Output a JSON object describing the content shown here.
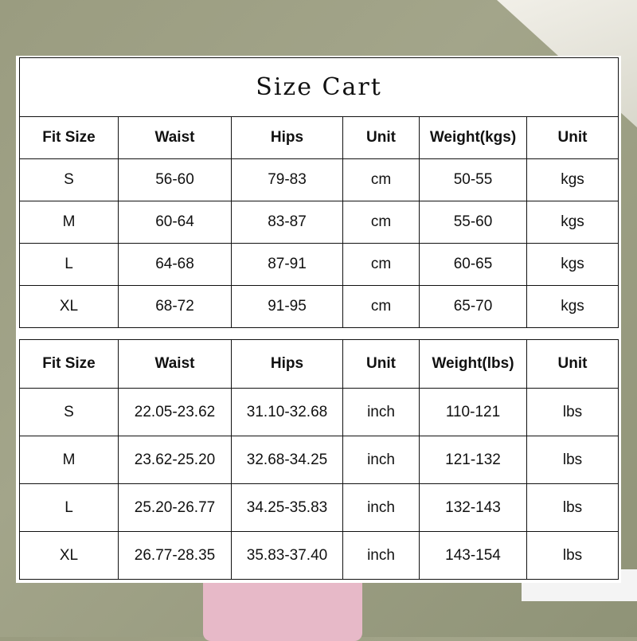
{
  "title": "Size Cart",
  "table_cm": {
    "headers": [
      "Fit Size",
      "Waist",
      "Hips",
      "Unit",
      "Weight(kgs)",
      "Unit"
    ],
    "rows": [
      [
        "S",
        "56-60",
        "79-83",
        "cm",
        "50-55",
        "kgs"
      ],
      [
        "M",
        "60-64",
        "83-87",
        "cm",
        "55-60",
        "kgs"
      ],
      [
        "L",
        "64-68",
        "87-91",
        "cm",
        "60-65",
        "kgs"
      ],
      [
        "XL",
        "68-72",
        "91-95",
        "cm",
        "65-70",
        "kgs"
      ]
    ]
  },
  "table_inch": {
    "headers": [
      "Fit Size",
      "Waist",
      "Hips",
      "Unit",
      "Weight(lbs)",
      "Unit"
    ],
    "rows": [
      [
        "S",
        "22.05-23.62",
        "31.10-32.68",
        "inch",
        "110-121",
        "lbs"
      ],
      [
        "M",
        "23.62-25.20",
        "32.68-34.25",
        "inch",
        "121-132",
        "lbs"
      ],
      [
        "L",
        "25.20-26.77",
        "34.25-35.83",
        "inch",
        "132-143",
        "lbs"
      ],
      [
        "XL",
        "26.77-28.35",
        "35.83-37.40",
        "inch",
        "143-154",
        "lbs"
      ]
    ]
  }
}
